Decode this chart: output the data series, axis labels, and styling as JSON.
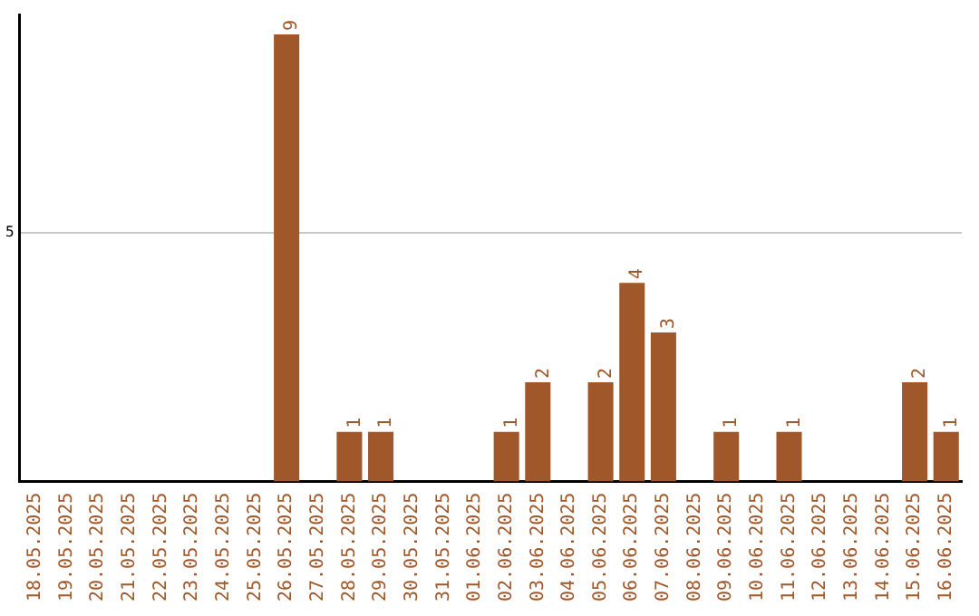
{
  "chart_data": {
    "type": "bar",
    "categories": [
      "18.05.2025",
      "19.05.2025",
      "20.05.2025",
      "21.05.2025",
      "22.05.2025",
      "23.05.2025",
      "24.05.2025",
      "25.05.2025",
      "26.05.2025",
      "27.05.2025",
      "28.05.2025",
      "29.05.2025",
      "30.05.2025",
      "31.05.2025",
      "01.06.2025",
      "02.06.2025",
      "03.06.2025",
      "04.06.2025",
      "05.06.2025",
      "06.06.2025",
      "07.06.2025",
      "08.06.2025",
      "09.06.2025",
      "10.06.2025",
      "11.06.2025",
      "12.06.2025",
      "13.06.2025",
      "14.06.2025",
      "15.06.2025",
      "16.06.2025"
    ],
    "values": [
      0,
      0,
      0,
      0,
      0,
      0,
      0,
      0,
      9,
      0,
      1,
      1,
      0,
      0,
      0,
      1,
      2,
      0,
      2,
      4,
      3,
      0,
      1,
      0,
      1,
      0,
      0,
      0,
      2,
      1
    ],
    "value_labels": [
      null,
      null,
      null,
      null,
      null,
      null,
      null,
      null,
      "9",
      null,
      "1",
      "1",
      null,
      null,
      null,
      "1",
      "2",
      null,
      "2",
      "4",
      "3",
      null,
      "1",
      null,
      "1",
      null,
      null,
      null,
      "2",
      "1"
    ],
    "color": "#a0572a",
    "ylim": [
      0,
      9.4
    ],
    "yticks": [
      5
    ],
    "grid": "y"
  }
}
